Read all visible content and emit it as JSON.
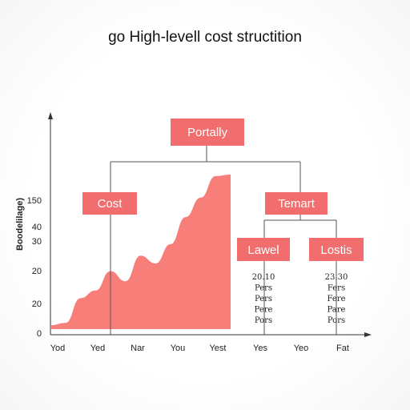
{
  "title": "go High-levell cost structition",
  "colors": {
    "accent": "#f47373",
    "area_fill": "#f87e7a",
    "node_fill": "#f26d6d",
    "line": "#555555"
  },
  "chart_data": {
    "type": "area",
    "ylabel": "Boodelilage)",
    "y_ticks": [
      "150",
      "40",
      "30",
      "20",
      "20",
      "0"
    ],
    "x_ticks": [
      "Yod",
      "Yed",
      "Nar",
      "You",
      "Yest",
      "Yes",
      "Yeo",
      "Fat"
    ],
    "values": [
      5,
      8,
      40,
      50,
      75,
      62,
      95,
      85,
      110,
      145,
      170,
      198,
      200
    ]
  },
  "nodes": {
    "root": "Portally",
    "left": "Cost",
    "right": "Temart",
    "right_left": "Lawel",
    "right_right": "Lostis"
  },
  "lists": {
    "left": [
      "20.10",
      "Pers",
      "Pers",
      "Pere",
      "Pors"
    ],
    "right": [
      "23.30",
      "Fers",
      "Fere",
      "Pare",
      "Pors"
    ]
  }
}
